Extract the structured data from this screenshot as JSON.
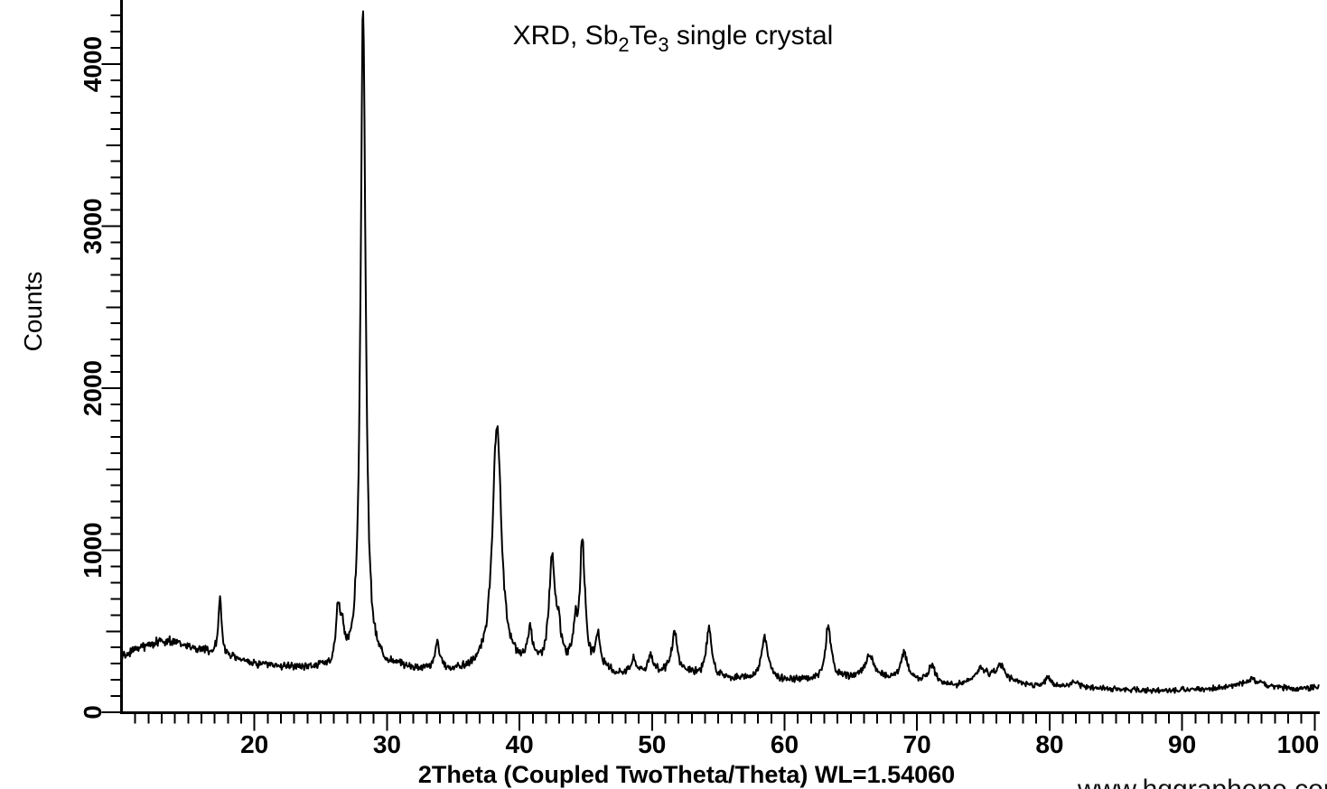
{
  "page": {
    "background": "#ffffff"
  },
  "chart_data": {
    "type": "line",
    "title": "XRD, Sb2Te3 single crystal",
    "title_segments": [
      {
        "text": "XRD, Sb",
        "subscript": false
      },
      {
        "text": "2",
        "subscript": true
      },
      {
        "text": "Te",
        "subscript": false
      },
      {
        "text": "3",
        "subscript": true
      },
      {
        "text": " single crystal",
        "subscript": false
      }
    ],
    "xlabel": "2Theta (Coupled TwoTheta/Theta) WL=1.54060",
    "ylabel": "Counts",
    "watermark": "www.hqgraphene.com",
    "x_unit": "degrees 2Theta",
    "y_unit": "counts",
    "wavelength": "WL=1.54060",
    "xlim": [
      10,
      100.3
    ],
    "ylim": [
      0,
      4400
    ],
    "x_major_ticks": [
      20,
      30,
      40,
      50,
      60,
      70,
      80,
      90,
      100
    ],
    "x_minor_tick_step": 1,
    "y_major_ticks": [
      0,
      1000,
      2000,
      3000,
      4000
    ],
    "y_minor_tick_step": 100,
    "grid": false,
    "legend": false,
    "colors": {
      "background": "#ffffff",
      "axis": "#000000",
      "trace": "#000000",
      "text": "#000000",
      "watermark": "#111111"
    },
    "series": [
      {
        "name": "Sb2Te3 single crystal",
        "model": "baseline + lorentzian peaks + sqrt(counts) noise",
        "noise_seed": 77421,
        "noise_scale": 1.7,
        "sample_step_deg": 0.05,
        "baseline_points": [
          [
            9.9,
            330
          ],
          [
            11,
            385
          ],
          [
            12,
            415
          ],
          [
            13,
            440
          ],
          [
            14,
            430
          ],
          [
            15,
            400
          ],
          [
            16,
            380
          ],
          [
            17,
            362
          ],
          [
            18,
            345
          ],
          [
            19,
            318
          ],
          [
            20,
            300
          ],
          [
            21,
            288
          ],
          [
            22,
            280
          ],
          [
            24,
            272
          ],
          [
            26,
            265
          ],
          [
            28,
            265
          ],
          [
            30,
            275
          ],
          [
            31.5,
            265
          ],
          [
            33,
            255
          ],
          [
            35,
            245
          ],
          [
            36.5,
            250
          ],
          [
            38,
            255
          ],
          [
            39.5,
            262
          ],
          [
            41,
            265
          ],
          [
            42.5,
            252
          ],
          [
            44,
            252
          ],
          [
            45.5,
            248
          ],
          [
            46.5,
            250
          ],
          [
            47.3,
            228
          ],
          [
            48.5,
            238
          ],
          [
            50,
            242
          ],
          [
            51,
            238
          ],
          [
            52.8,
            238
          ],
          [
            54,
            218
          ],
          [
            55.5,
            207
          ],
          [
            57,
            202
          ],
          [
            58.5,
            198
          ],
          [
            60,
            193
          ],
          [
            61.5,
            197
          ],
          [
            63,
            195
          ],
          [
            64.5,
            205
          ],
          [
            66,
            210
          ],
          [
            67.5,
            205
          ],
          [
            69,
            193
          ],
          [
            70.5,
            188
          ],
          [
            72,
            172
          ],
          [
            73,
            158
          ],
          [
            74.3,
            190
          ],
          [
            75.5,
            196
          ],
          [
            76.5,
            193
          ],
          [
            78,
            168
          ],
          [
            79.5,
            158
          ],
          [
            81,
            152
          ],
          [
            82.5,
            150
          ],
          [
            84,
            147
          ],
          [
            85.5,
            142
          ],
          [
            87,
            135
          ],
          [
            88.5,
            130
          ],
          [
            90,
            137
          ],
          [
            91.5,
            142
          ],
          [
            93,
            150
          ],
          [
            94.5,
            157
          ],
          [
            96,
            160
          ],
          [
            97.5,
            148
          ],
          [
            99,
            145
          ],
          [
            100.3,
            150
          ]
        ],
        "peaks": [
          {
            "two_theta": 17.4,
            "peak_counts": 730,
            "amplitude": 370,
            "fwhm_deg": 0.28
          },
          {
            "two_theta": 26.3,
            "peak_counts": 660,
            "amplitude": 330,
            "fwhm_deg": 0.35
          },
          {
            "two_theta": 26.6,
            "peak_counts": 560,
            "amplitude": 190,
            "fwhm_deg": 0.35
          },
          {
            "two_theta": 28.2,
            "peak_counts": 4360,
            "amplitude": 4090,
            "fwhm_deg": 0.45
          },
          {
            "two_theta": 33.8,
            "peak_counts": 415,
            "amplitude": 170,
            "fwhm_deg": 0.4
          },
          {
            "two_theta": 38.3,
            "peak_counts": 1790,
            "amplitude": 1500,
            "fwhm_deg": 0.8
          },
          {
            "two_theta": 40.8,
            "peak_counts": 480,
            "amplitude": 215,
            "fwhm_deg": 0.45
          },
          {
            "two_theta": 42.45,
            "peak_counts": 925,
            "amplitude": 640,
            "fwhm_deg": 0.55
          },
          {
            "two_theta": 42.95,
            "peak_counts": 590,
            "amplitude": 190,
            "fwhm_deg": 0.5
          },
          {
            "two_theta": 44.2,
            "peak_counts": 580,
            "amplitude": 210,
            "fwhm_deg": 0.45
          },
          {
            "two_theta": 44.75,
            "peak_counts": 1090,
            "amplitude": 780,
            "fwhm_deg": 0.45
          },
          {
            "two_theta": 45.9,
            "peak_counts": 490,
            "amplitude": 210,
            "fwhm_deg": 0.4
          },
          {
            "two_theta": 48.6,
            "peak_counts": 320,
            "amplitude": 80,
            "fwhm_deg": 0.5
          },
          {
            "two_theta": 49.9,
            "peak_counts": 340,
            "amplitude": 95,
            "fwhm_deg": 0.45
          },
          {
            "two_theta": 51.7,
            "peak_counts": 490,
            "amplitude": 250,
            "fwhm_deg": 0.5
          },
          {
            "two_theta": 54.3,
            "peak_counts": 510,
            "amplitude": 290,
            "fwhm_deg": 0.5
          },
          {
            "two_theta": 58.5,
            "peak_counts": 465,
            "amplitude": 265,
            "fwhm_deg": 0.6
          },
          {
            "two_theta": 63.3,
            "peak_counts": 540,
            "amplitude": 340,
            "fwhm_deg": 0.5
          },
          {
            "two_theta": 66.4,
            "peak_counts": 345,
            "amplitude": 135,
            "fwhm_deg": 0.8
          },
          {
            "two_theta": 69.0,
            "peak_counts": 370,
            "amplitude": 175,
            "fwhm_deg": 0.6
          },
          {
            "two_theta": 71.1,
            "peak_counts": 295,
            "amplitude": 105,
            "fwhm_deg": 0.6
          },
          {
            "two_theta": 74.8,
            "peak_counts": 265,
            "amplitude": 70,
            "fwhm_deg": 0.9
          },
          {
            "two_theta": 76.3,
            "peak_counts": 285,
            "amplitude": 90,
            "fwhm_deg": 0.9
          },
          {
            "two_theta": 79.9,
            "peak_counts": 215,
            "amplitude": 55,
            "fwhm_deg": 0.6
          },
          {
            "two_theta": 81.8,
            "peak_counts": 190,
            "amplitude": 35,
            "fwhm_deg": 0.7
          },
          {
            "two_theta": 95.2,
            "peak_counts": 195,
            "amplitude": 40,
            "fwhm_deg": 1.5
          }
        ]
      }
    ]
  }
}
